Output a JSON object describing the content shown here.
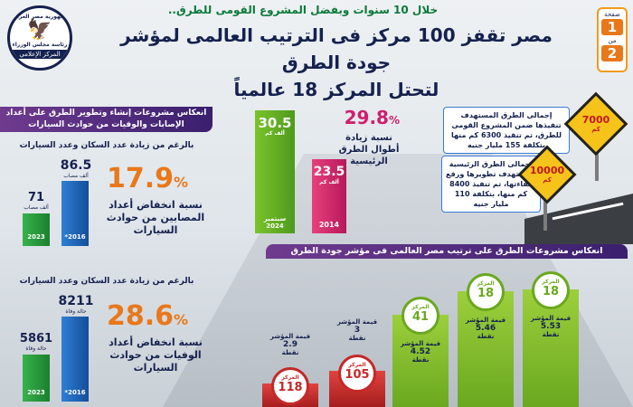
{
  "header": {
    "subtitle": "خلال 10 سنوات وبفضل المشروع القومى للطرق..",
    "headline_line1": "مصر تقفز 100 مركز فى الترتيب العالمى لمؤشر جودة الطرق",
    "headline_line2": "لتحتل المركز 18 عالمياً"
  },
  "page_box": {
    "label_page": "صفحة",
    "page": "1",
    "label_of": "من",
    "total": "2"
  },
  "logo": {
    "top_text": "جمهورية مصر العربية",
    "mid_text": "رئاسة مجلس الوزراء",
    "bottom_text": "المركز الإعلامي"
  },
  "info": {
    "box1": "إجمالى الطرق المستهدف تنفيذها ضمن المشروع القومى للطرق، تم تنفيذ 6300 كم منها بتكلفة 155 مليار جنيه",
    "sign1": "7000",
    "sign1_unit": "كم",
    "box2": "إجمالى الطرق الرئيسية المستهدف تطويرها ورفع كفاءتها، تم تنفيذ 8400 كم منها، بتكلفة 110 مليار جنيه",
    "sign2": "10000",
    "sign2_unit": "كم"
  },
  "growth": {
    "percent": "29.8",
    "percent_sign": "%",
    "desc": "نسبة زيادة أطوال الطرق الرئيسية",
    "bar_2024_value": "30.5",
    "bar_2024_unit": "ألف كم",
    "bar_2024_label": "سبتمبر 2024",
    "bar_2014_value": "23.5",
    "bar_2014_unit": "ألف كم",
    "bar_2014_label": "2014"
  },
  "left_panel": {
    "header": "انعكاس مشروعات إنشاء وتطوير الطرق على أعداد الإصابات والوفيات من حوادث السيارات",
    "injuries": {
      "section_title": "بالرغم من زيادة عدد السكان وعدد السيارات",
      "percent": "17.9",
      "desc": "نسبة انخفاض أعداد المصابين من حوادث السيارات",
      "v2016": "86.5",
      "v2016_unit": "ألف مصاب",
      "y2016": "2016*",
      "v2023": "71",
      "v2023_unit": "ألف مصاب",
      "y2023": "2023"
    },
    "deaths": {
      "section_title": "بالرغم من زيادة عدد السكان وعدد السيارات",
      "percent": "28.6",
      "desc": "نسبة انخفاض أعداد الوفيات من حوادث السيارات",
      "v2016": "8211",
      "v2016_unit": "حالة وفاة",
      "y2016": "2016*",
      "v2023": "5861",
      "v2023_unit": "حالة وفاة",
      "y2023": "2023"
    }
  },
  "ranking": {
    "header": "انعكاس مشروعات الطرق على ترتيب مصر العالمى فى مؤشر جودة الطرق",
    "rank_label": "المركز",
    "score_label": "قيمة المؤشر",
    "unit": "نقطة",
    "items": [
      {
        "rank": "18",
        "score": "5.53"
      },
      {
        "rank": "18",
        "score": "5.46"
      },
      {
        "rank": "41",
        "score": "4.52"
      },
      {
        "rank": "105",
        "score": "3"
      },
      {
        "rank": "118",
        "score": "2.9"
      }
    ]
  }
}
